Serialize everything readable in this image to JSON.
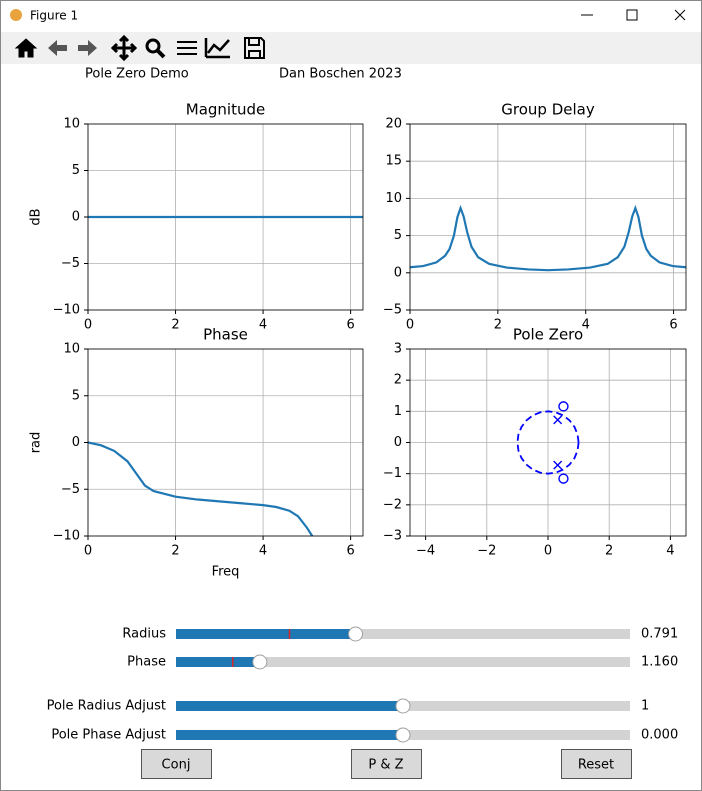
{
  "window": {
    "title": "Figure 1"
  },
  "header": {
    "left": "Pole Zero Demo",
    "right": "Dan Boschen 2023"
  },
  "chart_data": [
    {
      "type": "line",
      "title": "Magnitude",
      "y_label": "dB",
      "color": "#1f77b4",
      "x": [
        0,
        0.5,
        1,
        1.5,
        2,
        2.5,
        3,
        3.5,
        4,
        4.5,
        5,
        5.5,
        6,
        6.283
      ],
      "values": [
        0,
        0,
        0,
        0,
        0,
        0,
        0,
        0,
        0,
        0,
        0,
        0,
        0,
        0
      ],
      "xlim": [
        0,
        6.283
      ],
      "xticks": [
        0,
        2,
        4,
        6
      ],
      "ylim": [
        -10,
        10
      ],
      "yticks": [
        {
          "value": -10,
          "label": "−10"
        },
        {
          "value": -5,
          "label": "−5"
        },
        0,
        5,
        10
      ],
      "grid": true
    },
    {
      "type": "line",
      "title": "Group Delay",
      "color": "#1f77b4",
      "x": [
        0,
        0.3,
        0.6,
        0.8,
        0.9,
        1.0,
        1.08,
        1.15,
        1.22,
        1.3,
        1.4,
        1.55,
        1.8,
        2.2,
        2.7,
        3.14,
        3.6,
        4.1,
        4.5,
        4.73,
        4.88,
        4.98,
        5.06,
        5.13,
        5.2,
        5.28,
        5.38,
        5.48,
        5.68,
        5.98,
        6.283
      ],
      "values": [
        0.75,
        0.9,
        1.4,
        2.3,
        3.2,
        5,
        7.5,
        8.7,
        7.6,
        5.5,
        3.5,
        2.1,
        1.2,
        0.7,
        0.45,
        0.35,
        0.45,
        0.7,
        1.2,
        2.1,
        3.5,
        5.5,
        7.6,
        8.7,
        7.5,
        5,
        3.2,
        2.3,
        1.4,
        0.9,
        0.75
      ],
      "xlim": [
        0,
        6.283
      ],
      "xticks": [
        0,
        2,
        4,
        6
      ],
      "ylim": [
        -5,
        20
      ],
      "yticks": [
        {
          "value": -5,
          "label": "−5"
        },
        0,
        5,
        10,
        15,
        20
      ],
      "grid": true
    },
    {
      "type": "line",
      "title": "Phase",
      "x_label": "Freq",
      "y_label": "rad",
      "color": "#1f77b4",
      "x": [
        0,
        0.3,
        0.6,
        0.9,
        1.1,
        1.3,
        1.5,
        2,
        2.5,
        3,
        3.5,
        4,
        4.3,
        4.6,
        4.8,
        5.0,
        5.15,
        5.3
      ],
      "values": [
        0,
        -0.3,
        -0.9,
        -2,
        -3.3,
        -4.6,
        -5.2,
        -5.8,
        -6.1,
        -6.3,
        -6.5,
        -6.7,
        -6.9,
        -7.3,
        -7.9,
        -9.1,
        -10.2,
        -11.2
      ],
      "xlim": [
        0,
        6.283
      ],
      "xticks": [
        0,
        2,
        4,
        6
      ],
      "ylim": [
        -10,
        10
      ],
      "yticks": [
        {
          "value": -10,
          "label": "−10"
        },
        {
          "value": -5,
          "label": "−5"
        },
        0,
        5,
        10
      ],
      "grid": true
    },
    {
      "type": "scatter",
      "title": "Pole Zero",
      "series": [
        {
          "color": "#0000ff",
          "marker": "o",
          "x": [
            0.505,
            0.505
          ],
          "values": [
            1.159,
            -1.159
          ]
        },
        {
          "color": "#0000ff",
          "marker": "x",
          "x": [
            0.316,
            0.316
          ],
          "values": [
            0.725,
            -0.725
          ]
        },
        {
          "color": "#0000ff",
          "line_style": "dashed",
          "x": [
            1,
            0.966,
            0.866,
            0.707,
            0.5,
            0.259,
            0,
            -0.259,
            -0.5,
            -0.707,
            -0.866,
            -0.966,
            -1,
            -0.966,
            -0.866,
            -0.707,
            -0.5,
            -0.259,
            0,
            0.259,
            0.5,
            0.707,
            0.866,
            0.966,
            1
          ],
          "values": [
            0,
            0.259,
            0.5,
            0.707,
            0.866,
            0.966,
            1,
            0.966,
            0.866,
            0.707,
            0.5,
            0.259,
            0,
            -0.259,
            -0.5,
            -0.707,
            -0.866,
            -0.966,
            -1,
            -0.966,
            -0.866,
            -0.707,
            -0.5,
            -0.259,
            0
          ]
        }
      ],
      "xlim": [
        -4.51,
        4.51
      ],
      "xticks": [
        {
          "value": -4,
          "label": "−4"
        },
        {
          "value": -2,
          "label": "−2"
        },
        0,
        2,
        4
      ],
      "ylim": [
        -3,
        3
      ],
      "yticks": [
        {
          "value": -3,
          "label": "−3"
        },
        {
          "value": -2,
          "label": "−2"
        },
        {
          "value": -1,
          "label": "−1"
        },
        0,
        1,
        2,
        3
      ],
      "grid": true
    }
  ],
  "sliders": [
    {
      "label": "Radius",
      "value": 0.791,
      "range": [
        0,
        2
      ],
      "initial": 0.5
    },
    {
      "label": "Phase",
      "value": 1.16,
      "value_label": "1.160",
      "range": [
        0,
        6.283
      ],
      "initial": 0.785
    },
    {
      "label": "Pole Radius Adjust",
      "value": 1,
      "range": [
        0,
        2
      ]
    },
    {
      "label": "Pole Phase Adjust",
      "value": 0,
      "value_label": "0.000",
      "range": [
        -1,
        1
      ]
    }
  ],
  "buttons": [
    "Conj",
    "P & Z",
    "Reset"
  ]
}
